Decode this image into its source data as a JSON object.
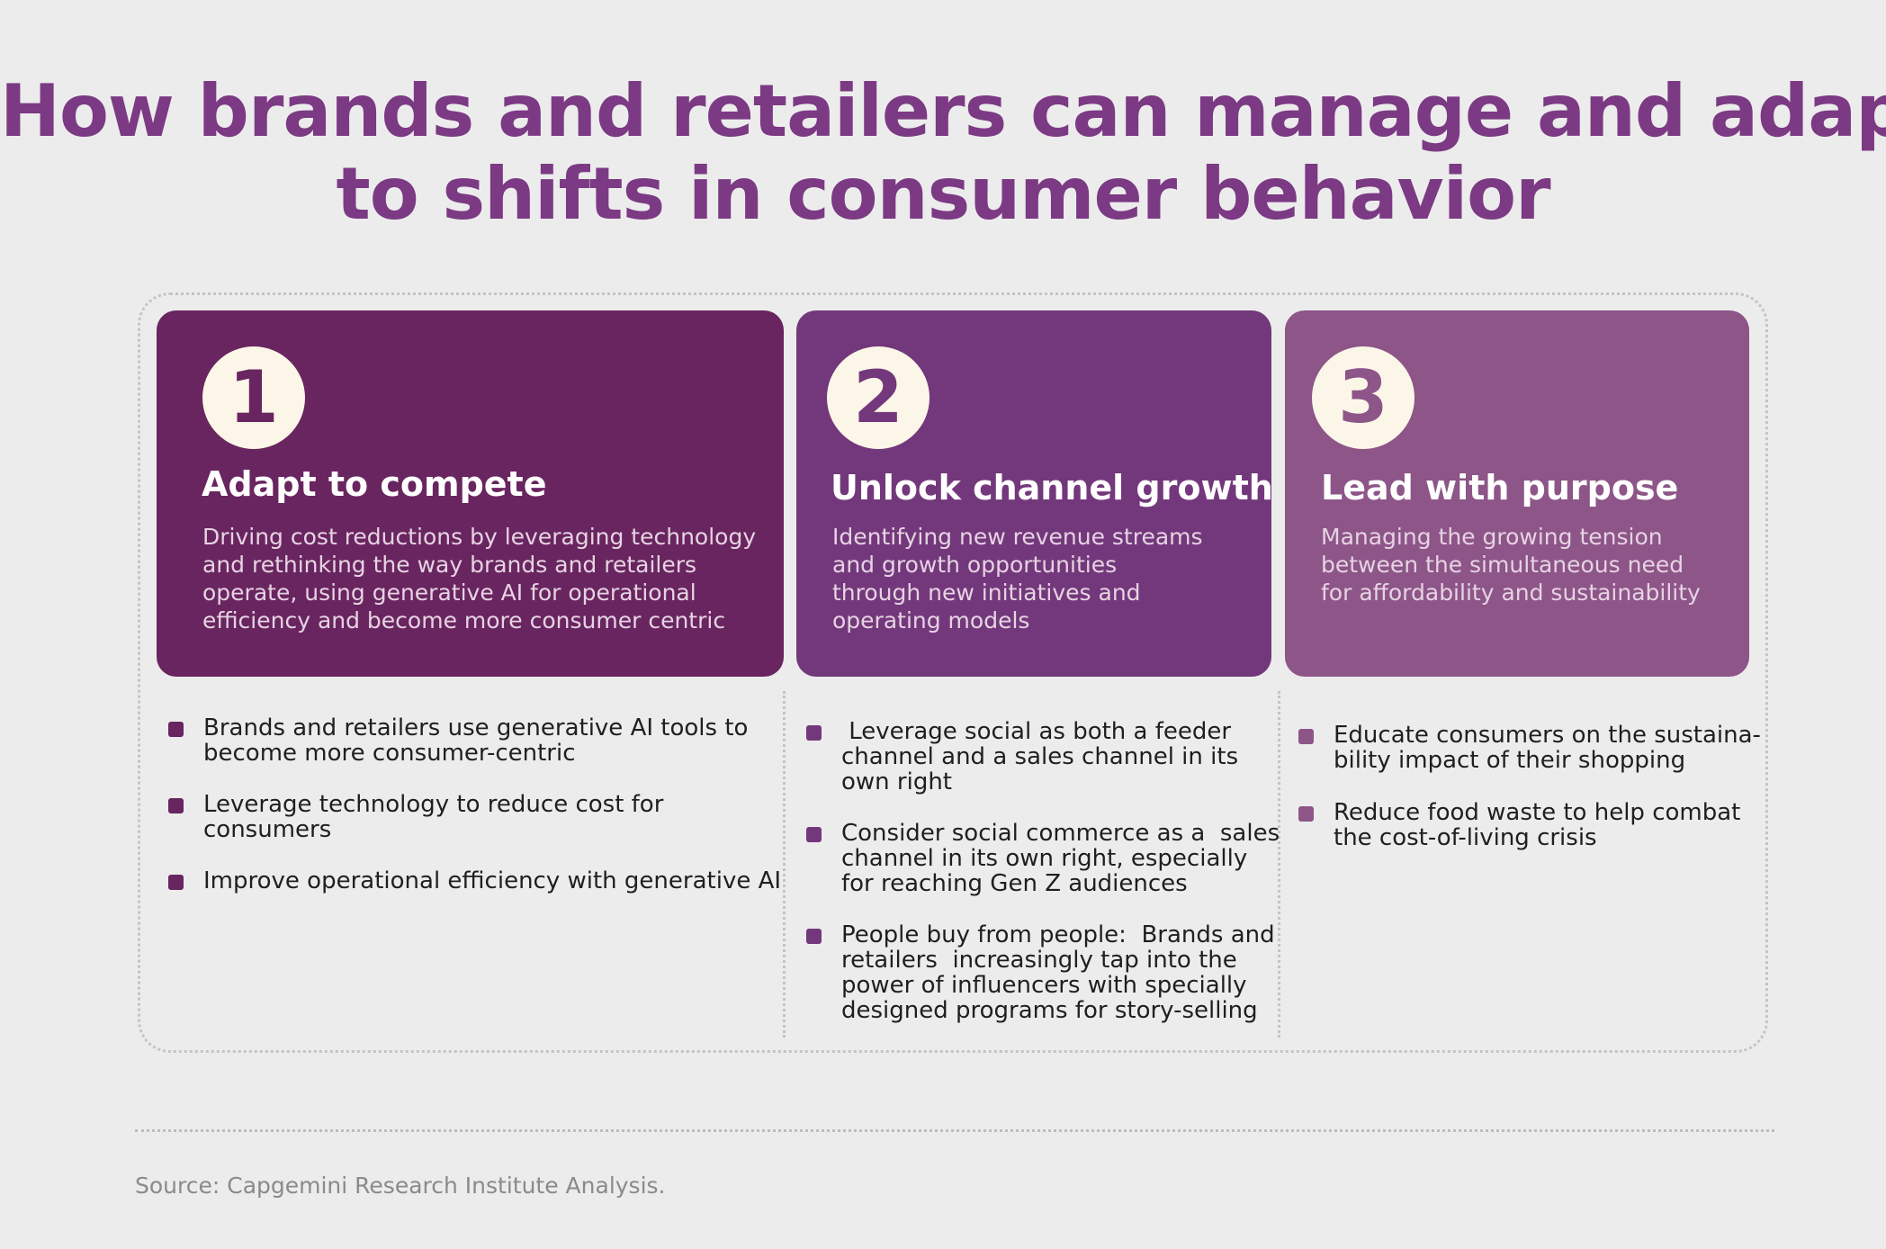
{
  "title": {
    "lines": [
      "How brands and retailers can manage and adapt",
      "to shifts in consumer behavior"
    ]
  },
  "colors": {
    "title": "#7b3a83",
    "card_1": "#69255f",
    "card_2": "#73387b",
    "card_3": "#8d5588",
    "number_circle": "#fbf6e7",
    "background": "#ececec"
  },
  "cards": [
    {
      "number": "1",
      "title": "Adapt to compete",
      "description_lines": [
        "Driving cost reductions by leveraging technology",
        "and rethinking the way brands and retailers",
        "operate, using generative AI for operational",
        "efficiency and become more consumer centric"
      ],
      "bullets": [
        [
          "Brands and retailers use generative AI tools to",
          "become more consumer-centric"
        ],
        [
          "Leverage technology to reduce cost for",
          "consumers"
        ],
        [
          "Improve operational efficiency with generative AI"
        ]
      ]
    },
    {
      "number": "2",
      "title": "Unlock channel growth",
      "description_lines": [
        "Identifying new revenue streams",
        "and growth opportunities",
        "through new initiatives and",
        "operating models"
      ],
      "bullets": [
        [
          " Leverage social as both a feeder",
          "channel and a sales channel in its",
          "own right"
        ],
        [
          "Consider social commerce as a  sales",
          "channel in its own right, especially",
          "for reaching Gen Z audiences"
        ],
        [
          "People buy from people:  Brands and",
          "retailers  increasingly tap into the",
          "power of influencers with specially",
          "designed programs for story-selling"
        ]
      ]
    },
    {
      "number": "3",
      "title": "Lead with purpose",
      "description_lines": [
        "Managing the growing tension",
        "between the simultaneous need",
        "for affordability and sustainability"
      ],
      "bullets": [
        [
          "Educate consumers on the sustaina-",
          "bility impact of their shopping"
        ],
        [
          "Reduce food waste to help combat",
          "the cost-of-living crisis"
        ]
      ]
    }
  ],
  "source": "Source: Capgemini Research Institute Analysis."
}
